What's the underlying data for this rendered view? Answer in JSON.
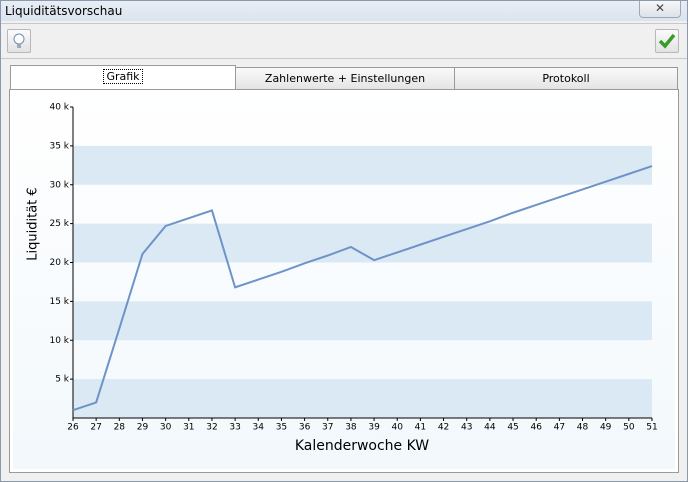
{
  "window": {
    "title": "Liquiditätsvorschau"
  },
  "tabs": [
    "Grafik",
    "Zahlenwerte + Einstellungen",
    "Protokoll"
  ],
  "chart_data": {
    "type": "line",
    "x_label": "Kalenderwoche KW",
    "y_label": "Liquidität €",
    "x": [
      26,
      27,
      28,
      29,
      30,
      31,
      32,
      33,
      34,
      35,
      36,
      37,
      38,
      39,
      40,
      41,
      42,
      43,
      44,
      45,
      46,
      47,
      48,
      49,
      50,
      51
    ],
    "xlim": [
      26,
      51
    ],
    "xticks": [
      26,
      27,
      28,
      29,
      30,
      31,
      32,
      33,
      34,
      35,
      36,
      37,
      38,
      39,
      40,
      41,
      42,
      43,
      44,
      45,
      46,
      47,
      48,
      49,
      50,
      51
    ],
    "series": [
      {
        "color": "#6f93c8",
        "values": [
          1000,
          2000,
          11500,
          21100,
          24700,
          25700,
          26700,
          16800,
          17800,
          18800,
          19900,
          20900,
          22000,
          20300,
          21300,
          22300,
          23300,
          24300,
          25300,
          26400,
          27400,
          28400,
          29400,
          30400,
          31400,
          32400
        ]
      }
    ],
    "ylim": [
      0,
      40000
    ],
    "yticks": [
      {
        "value": 5000,
        "label": "5 k"
      },
      {
        "value": 10000,
        "label": "10 k"
      },
      {
        "value": 15000,
        "label": "15 k"
      },
      {
        "value": 20000,
        "label": "20 k"
      },
      {
        "value": 25000,
        "label": "25 k"
      },
      {
        "value": 30000,
        "label": "30 k"
      },
      {
        "value": 35000,
        "label": "35 k"
      },
      {
        "value": 40000,
        "label": "40 k"
      }
    ],
    "grid": true
  }
}
